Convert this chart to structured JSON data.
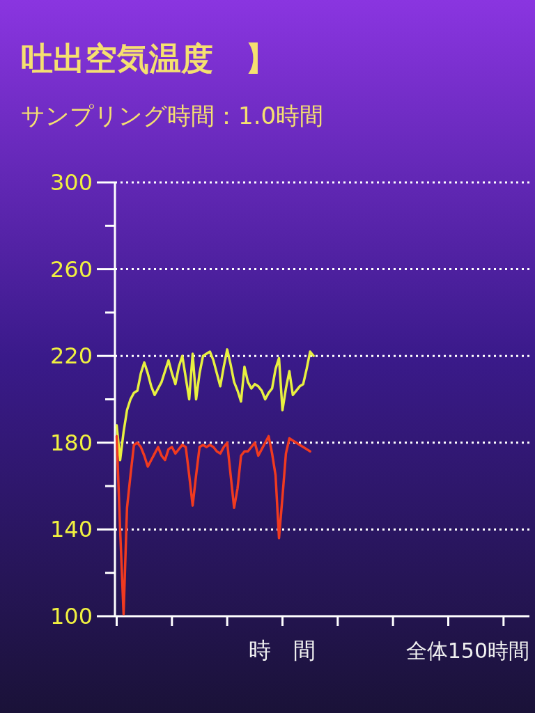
{
  "chart_data": {
    "type": "line",
    "title": "吐出空気温度　】",
    "subtitle": "サンプリング時間：1.0時間",
    "xlabel": "時　間",
    "annotations": [
      "全体150時間"
    ],
    "categories": [
      null,
      null,
      null,
      null,
      null,
      null,
      null,
      null,
      null,
      null,
      null,
      null,
      null,
      null,
      null,
      null,
      null,
      null,
      null,
      null,
      null,
      null,
      null,
      null,
      null,
      null,
      null,
      null,
      null,
      null,
      null,
      null,
      null,
      null,
      null,
      null,
      null,
      null,
      null,
      null,
      null,
      null,
      null,
      null,
      null,
      null,
      null,
      null,
      null,
      null,
      null,
      null,
      null,
      null,
      null,
      null,
      null,
      null,
      null,
      null,
      null,
      null,
      null,
      null,
      null,
      null,
      null,
      null,
      null,
      null,
      null,
      null,
      null,
      null,
      null,
      null,
      null,
      null,
      null,
      null,
      null,
      null,
      null,
      null,
      null,
      null,
      null,
      null,
      null,
      null,
      null,
      null,
      null,
      null,
      null,
      null,
      null,
      null,
      null,
      null,
      null,
      null,
      null,
      null,
      null,
      null,
      null,
      null,
      null,
      null,
      null,
      null,
      null,
      null,
      null,
      null,
      null,
      null,
      null,
      null
    ],
    "series": [
      {
        "color": "#e8f040",
        "values": [
          188,
          172,
          185,
          195,
          200,
          203,
          204,
          212,
          217,
          212,
          206,
          202,
          205,
          208,
          213,
          218,
          212,
          207,
          215,
          220,
          210,
          200,
          221,
          200,
          212,
          220,
          221,
          222,
          218,
          212,
          206,
          215,
          223,
          216,
          208,
          204,
          199,
          215,
          208,
          205,
          207,
          206,
          204,
          200,
          203,
          205,
          214,
          219,
          195,
          205,
          213,
          202,
          204,
          206,
          207,
          214,
          222,
          220,
          null,
          null,
          null,
          null,
          null,
          null,
          null,
          null,
          null,
          null,
          null,
          null,
          null,
          null,
          null,
          null,
          null,
          null,
          null,
          null,
          null,
          null,
          null,
          null,
          null,
          null,
          null,
          null,
          null,
          null,
          null,
          null,
          null,
          null,
          null,
          null,
          null,
          null,
          null,
          null,
          null,
          null,
          null,
          null,
          null,
          null,
          null,
          null,
          null,
          null,
          null,
          null,
          null,
          null,
          null,
          null,
          null,
          null,
          null,
          null,
          null,
          null
        ]
      },
      {
        "color": "#f03a20",
        "values": [
          183,
          140,
          101,
          150,
          165,
          179,
          180,
          178,
          174,
          169,
          172,
          175,
          178,
          174,
          172,
          177,
          178,
          175,
          177,
          179,
          178,
          165,
          151,
          165,
          178,
          179,
          178,
          179,
          178,
          176,
          175,
          178,
          180,
          165,
          150,
          159,
          174,
          176,
          176,
          178,
          180,
          174,
          177,
          180,
          183,
          175,
          165,
          136,
          155,
          175,
          182,
          181,
          180,
          179,
          178,
          177,
          176,
          null,
          null,
          null,
          null,
          null,
          null,
          null,
          null,
          null,
          null,
          null,
          null,
          null,
          null,
          null,
          null,
          null,
          null,
          null,
          null,
          null,
          null,
          null,
          null,
          null,
          null,
          null,
          null,
          null,
          null,
          null,
          null,
          null,
          null,
          null,
          null,
          null,
          null,
          null,
          null,
          null,
          null,
          null,
          null,
          null,
          null,
          null,
          null,
          null,
          null,
          null,
          null,
          null,
          null,
          null,
          null,
          null,
          null,
          null,
          null,
          null,
          null,
          null
        ]
      }
    ],
    "ylim": [
      100,
      300
    ],
    "yticks": [
      100,
      {
        "value": 120,
        "label": null
      },
      140,
      {
        "value": 160,
        "label": null
      },
      180,
      {
        "value": 200,
        "label": null
      },
      220,
      {
        "value": 240,
        "label": null
      },
      260,
      {
        "value": 280,
        "label": null
      },
      300
    ],
    "grid": "y",
    "tick_labels": "y"
  }
}
